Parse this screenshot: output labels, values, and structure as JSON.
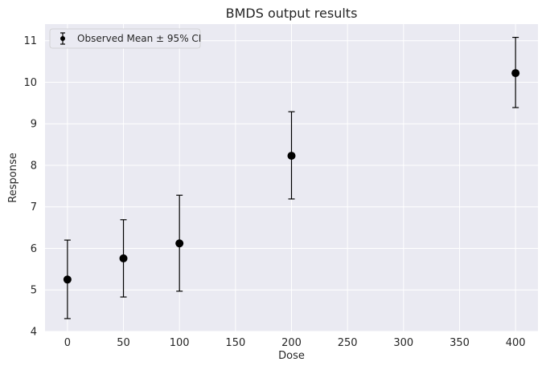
{
  "chart_data": {
    "type": "scatter",
    "title": "BMDS output results",
    "xlabel": "Dose",
    "ylabel": "Response",
    "xlim": [
      -20,
      420
    ],
    "ylim": [
      4,
      11.4
    ],
    "xticks": [
      0,
      50,
      100,
      150,
      200,
      250,
      300,
      350,
      400
    ],
    "yticks": [
      4,
      5,
      6,
      7,
      8,
      9,
      10,
      11
    ],
    "grid": true,
    "legend_placement": "top-left",
    "series": [
      {
        "name": "Observed Mean ± 95% CI",
        "color": "#000000",
        "marker": "circle",
        "points": [
          {
            "x": 0,
            "y": 5.25,
            "lower": 4.31,
            "upper": 6.2
          },
          {
            "x": 50,
            "y": 5.76,
            "lower": 4.83,
            "upper": 6.69
          },
          {
            "x": 100,
            "y": 6.12,
            "lower": 4.97,
            "upper": 7.28
          },
          {
            "x": 200,
            "y": 8.23,
            "lower": 7.19,
            "upper": 9.29
          },
          {
            "x": 400,
            "y": 10.22,
            "lower": 9.39,
            "upper": 11.08
          }
        ]
      }
    ],
    "colors": {
      "plot_background": "#eaeaf2",
      "grid": "#ffffff",
      "marker": "#000000"
    }
  }
}
